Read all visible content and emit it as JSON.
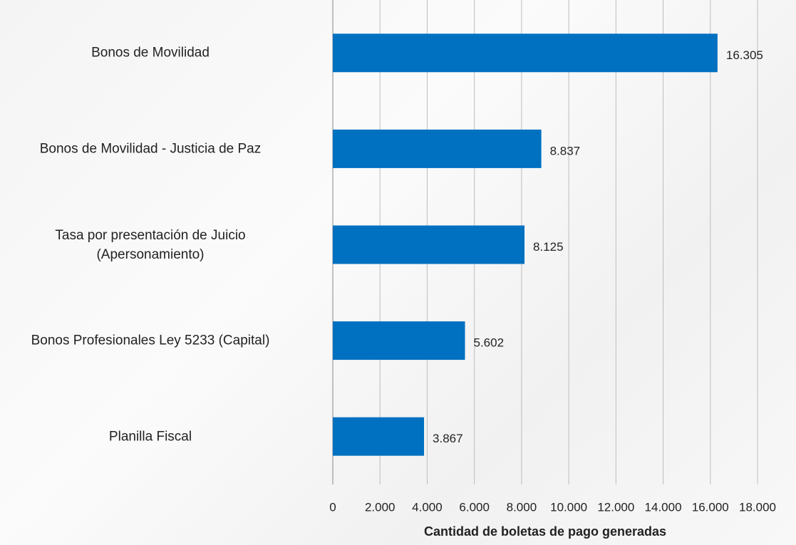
{
  "chart_data": {
    "type": "bar",
    "orientation": "horizontal",
    "categories": [
      "Bonos de Movilidad",
      "Bonos de Movilidad - Justicia de Paz",
      "Tasa por presentación de Juicio\n(Apersonamiento)",
      "Bonos Profesionales Ley 5233 (Capital)",
      "Planilla Fiscal"
    ],
    "values": [
      16305,
      8837,
      8125,
      5602,
      3867
    ],
    "value_labels": [
      "16.305",
      "8.837",
      "8.125",
      "5.602",
      "3.867"
    ],
    "color": "#0070c0",
    "xlim": [
      0,
      18000
    ],
    "xticks": [
      0,
      {
        "value": 2000,
        "label": "2.000"
      },
      {
        "value": 4000,
        "label": "4.000"
      },
      {
        "value": 6000,
        "label": "6.000"
      },
      {
        "value": 8000,
        "label": "8.000"
      },
      {
        "value": 10000,
        "label": "10.000"
      },
      {
        "value": 12000,
        "label": "12.000"
      },
      {
        "value": 14000,
        "label": "14.000"
      },
      {
        "value": 16000,
        "label": "16.000"
      },
      {
        "value": 18000,
        "label": "18.000"
      }
    ],
    "xlabel": "Cantidad de boletas de pago generadas",
    "grid": true
  }
}
